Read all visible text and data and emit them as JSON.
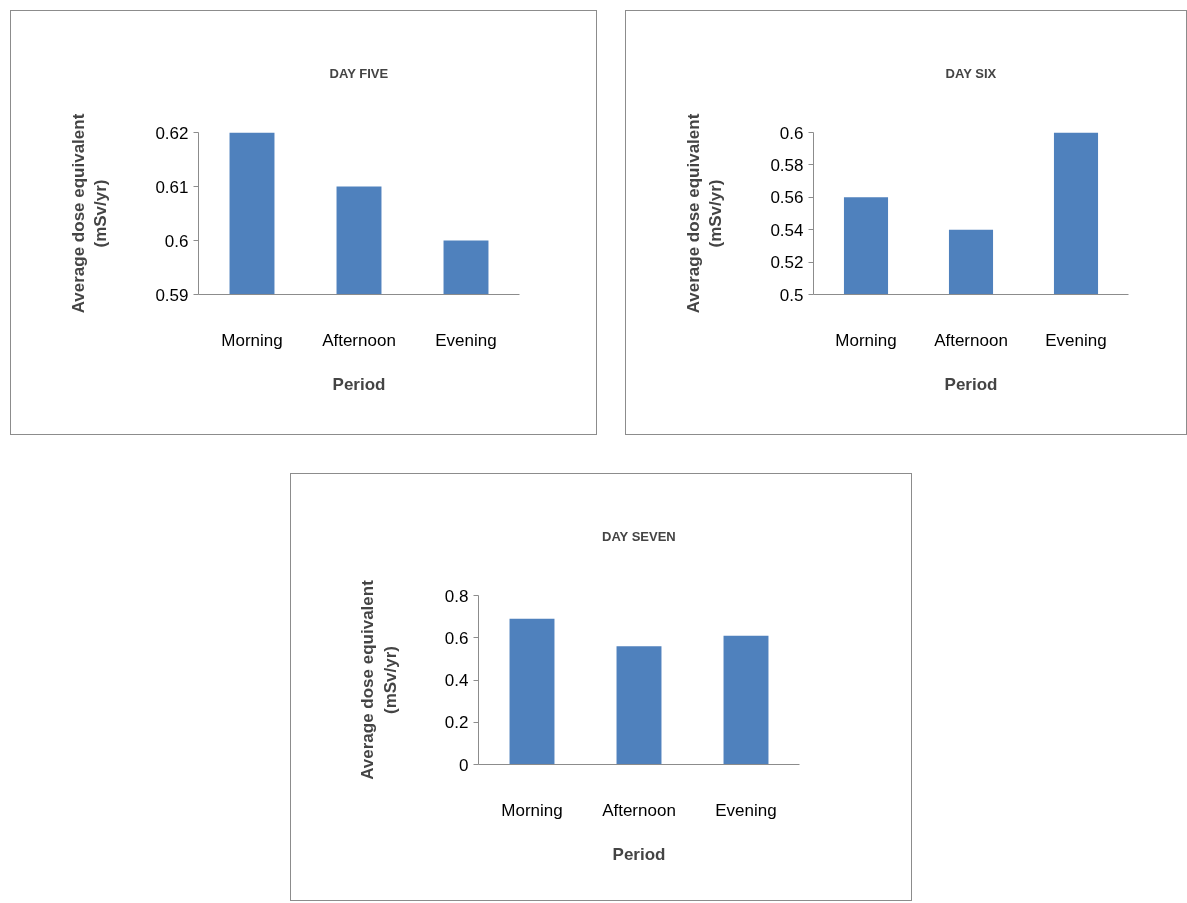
{
  "chart_data": [
    {
      "type": "bar",
      "title": "DAY FIVE",
      "xlabel": "Period",
      "ylabel": "Average dose equivalent (mSv/yr)",
      "categories": [
        "Morning",
        "Afternoon",
        "Evening"
      ],
      "values": [
        0.62,
        0.61,
        0.6
      ],
      "color": "#4f81bd",
      "ylim": [
        0.59,
        0.62
      ],
      "yticks": [
        0.59,
        0.6,
        0.61,
        0.62
      ],
      "grid": false
    },
    {
      "type": "bar",
      "title": "DAY SIX",
      "xlabel": "Period",
      "ylabel": "Average dose equivalent (mSv/yr)",
      "categories": [
        "Morning",
        "Afternoon",
        "Evening"
      ],
      "values": [
        0.56,
        0.54,
        0.6
      ],
      "color": "#4f81bd",
      "ylim": [
        0.5,
        0.6
      ],
      "yticks": [
        0.5,
        0.52,
        0.54,
        0.56,
        0.58,
        0.6
      ],
      "grid": false
    },
    {
      "type": "bar",
      "title": "DAY SEVEN",
      "xlabel": "Period",
      "ylabel": "Average dose equivalent (mSv/yr)",
      "categories": [
        "Morning",
        "Afternoon",
        "Evening"
      ],
      "values": [
        0.69,
        0.56,
        0.61
      ],
      "color": "#4f81bd",
      "ylim": [
        0,
        0.8
      ],
      "yticks": [
        0,
        0.2,
        0.4,
        0.6,
        0.8
      ],
      "grid": false
    }
  ]
}
